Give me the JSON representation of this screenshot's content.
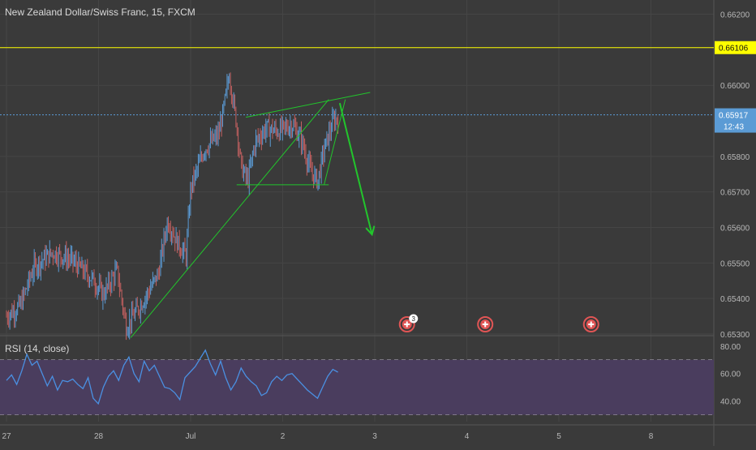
{
  "header": {
    "title": "New Zealand Dollar/Swiss Franc, 15, FXCM"
  },
  "colors": {
    "background": "#3a3a3a",
    "grid": "#454545",
    "candle_up": "#5b9bd5",
    "candle_down": "#c46060",
    "trendline": "#22c52c",
    "level_line": "#ffff00",
    "current_price_line": "#5b9bd5",
    "rsi_band": "#4a3d5e",
    "rsi_line": "#4a90e2",
    "axis_text": "#b8b8b8"
  },
  "chart_data": [
    {
      "type": "line",
      "name": "price",
      "x_ticks": [
        "27",
        "28",
        "Jul",
        "2",
        "3",
        "4",
        "5",
        "8"
      ],
      "y_ticks": [
        "0.66200",
        "0.66000",
        "0.65800",
        "0.65700",
        "0.65600",
        "0.65500",
        "0.65400",
        "0.65300"
      ],
      "ylim": [
        0.653,
        0.6624
      ],
      "level_line": {
        "value": 0.66106,
        "label": "0.66106"
      },
      "current_price": {
        "value": 0.65917,
        "label": "0.65917",
        "countdown": "12:43"
      },
      "price_path": [
        [
          0.0,
          0.6535
        ],
        [
          0.15,
          0.6538
        ],
        [
          0.3,
          0.6549
        ],
        [
          0.5,
          0.6553
        ],
        [
          0.7,
          0.6551
        ],
        [
          0.95,
          0.6545
        ],
        [
          1.05,
          0.6541
        ],
        [
          1.2,
          0.6548
        ],
        [
          1.3,
          0.6532
        ],
        [
          1.5,
          0.654
        ],
        [
          1.65,
          0.6547
        ],
        [
          1.75,
          0.6562
        ],
        [
          1.85,
          0.6556
        ],
        [
          1.95,
          0.6552
        ],
        [
          2.0,
          0.6571
        ],
        [
          2.15,
          0.6582
        ],
        [
          2.3,
          0.6586
        ],
        [
          2.35,
          0.6592
        ],
        [
          2.42,
          0.6603
        ],
        [
          2.5,
          0.6589
        ],
        [
          2.55,
          0.6577
        ],
        [
          2.62,
          0.6573
        ],
        [
          2.7,
          0.6584
        ],
        [
          2.82,
          0.6588
        ],
        [
          2.95,
          0.6587
        ],
        [
          3.1,
          0.6589
        ],
        [
          3.2,
          0.6585
        ],
        [
          3.3,
          0.6576
        ],
        [
          3.38,
          0.6573
        ],
        [
          3.45,
          0.6582
        ],
        [
          3.55,
          0.659
        ],
        [
          3.6,
          0.6591
        ]
      ],
      "drawings": {
        "long_trendline": [
          [
            1.35,
            0.6529
          ],
          [
            3.5,
            0.6596
          ]
        ],
        "wedge_upper": [
          [
            2.6,
            0.6591
          ],
          [
            3.95,
            0.6598
          ]
        ],
        "wedge_lower": [
          [
            2.5,
            0.6572
          ],
          [
            3.5,
            0.6572
          ]
        ],
        "wedge_inner": [
          [
            3.45,
            0.6572
          ],
          [
            3.68,
            0.6596
          ]
        ],
        "arrow": [
          [
            3.62,
            0.6595
          ],
          [
            3.97,
            0.6558
          ]
        ]
      },
      "event_markers": [
        {
          "x": 4.35,
          "badge": "3"
        },
        {
          "x": 5.2,
          "badge": ""
        },
        {
          "x": 6.35,
          "badge": ""
        }
      ]
    },
    {
      "type": "line",
      "name": "rsi",
      "label": "RSI (14, close)",
      "y_ticks": [
        "80.00",
        "60.00",
        "40.00"
      ],
      "ylim": [
        25,
        84
      ],
      "band": [
        30,
        70
      ],
      "values": [
        55,
        59,
        52,
        62,
        74,
        66,
        69,
        60,
        51,
        58,
        48,
        55,
        54,
        56,
        52,
        49,
        57,
        42,
        38,
        50,
        58,
        62,
        55,
        66,
        72,
        60,
        54,
        69,
        62,
        66,
        58,
        50,
        49,
        46,
        41,
        57,
        61,
        65,
        71,
        77,
        67,
        59,
        69,
        57,
        48,
        54,
        64,
        58,
        54,
        51,
        44,
        46,
        54,
        58,
        55,
        59,
        60,
        56,
        52,
        48,
        45,
        42,
        50,
        58,
        63,
        61
      ]
    }
  ]
}
